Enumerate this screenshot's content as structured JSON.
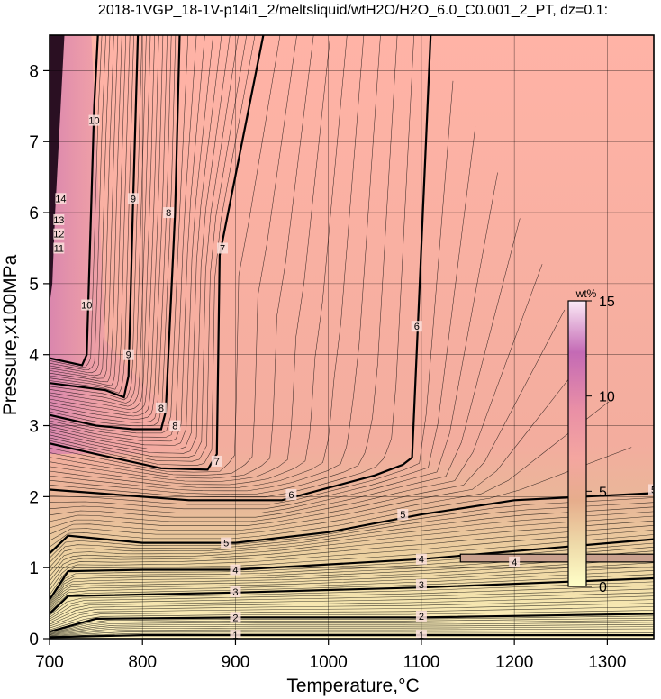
{
  "chart_data": {
    "type": "heatmap",
    "title": "2018-1VGP_18-1V-p14i1_2/meltsliquid/wtH2O/H2O_6.0_C0.001_2_PT, dz=0.1:",
    "xlabel": "Temperature,°C",
    "ylabel": "Pressure,x100MPa",
    "xlim": [
      700,
      1350
    ],
    "ylim": [
      0,
      8.5
    ],
    "x_ticks": [
      700,
      800,
      900,
      1000,
      1100,
      1200,
      1300
    ],
    "y_ticks": [
      0,
      1,
      2,
      3,
      4,
      5,
      6,
      7,
      8
    ],
    "grid": true,
    "colorbar": {
      "unit": "wt%",
      "range": [
        0,
        15
      ],
      "ticks": [
        0,
        5,
        10,
        15
      ],
      "colors": [
        "#ffffc8",
        "#eed9a8",
        "#e6ad8c",
        "#f4a6a0",
        "#e98fa6",
        "#c46ab5",
        "#fbeaf6"
      ]
    },
    "contours": [
      {
        "level": 1,
        "points": [
          [
            700,
            0.02
          ],
          [
            800,
            0.05
          ],
          [
            1000,
            0.05
          ],
          [
            1350,
            0.05
          ]
        ]
      },
      {
        "level": 2,
        "points": [
          [
            700,
            0.1
          ],
          [
            750,
            0.28
          ],
          [
            900,
            0.3
          ],
          [
            1100,
            0.3
          ],
          [
            1350,
            0.35
          ]
        ]
      },
      {
        "level": 3,
        "points": [
          [
            700,
            0.35
          ],
          [
            720,
            0.6
          ],
          [
            900,
            0.65
          ],
          [
            1100,
            0.72
          ],
          [
            1350,
            0.85
          ]
        ]
      },
      {
        "level": 4,
        "points": [
          [
            700,
            0.55
          ],
          [
            720,
            0.95
          ],
          [
            800,
            0.97
          ],
          [
            900,
            0.97
          ],
          [
            1100,
            1.12
          ],
          [
            1350,
            1.4
          ]
        ]
      },
      {
        "level": 5,
        "points": [
          [
            700,
            1.2
          ],
          [
            720,
            1.45
          ],
          [
            800,
            1.35
          ],
          [
            900,
            1.35
          ],
          [
            1000,
            1.5
          ],
          [
            1100,
            1.75
          ],
          [
            1200,
            1.95
          ],
          [
            1350,
            2.05
          ]
        ]
      },
      {
        "level": 6,
        "points": [
          [
            700,
            2.1
          ],
          [
            750,
            2.05
          ],
          [
            850,
            1.95
          ],
          [
            950,
            1.95
          ],
          [
            1050,
            2.3
          ],
          [
            1080,
            2.45
          ],
          [
            1090,
            2.55
          ],
          [
            1110,
            8.5
          ]
        ]
      },
      {
        "level": 7,
        "points": [
          [
            700,
            2.75
          ],
          [
            750,
            2.6
          ],
          [
            820,
            2.4
          ],
          [
            870,
            2.38
          ],
          [
            880,
            2.6
          ],
          [
            883,
            5.4
          ],
          [
            930,
            8.5
          ]
        ]
      },
      {
        "level": 8,
        "points": [
          [
            700,
            3.15
          ],
          [
            750,
            3.0
          ],
          [
            790,
            2.95
          ],
          [
            820,
            2.95
          ],
          [
            825,
            3.2
          ],
          [
            835,
            6.0
          ],
          [
            840,
            8.5
          ]
        ]
      },
      {
        "level": 9,
        "points": [
          [
            700,
            3.6
          ],
          [
            760,
            3.5
          ],
          [
            780,
            3.4
          ],
          [
            785,
            3.7
          ],
          [
            790,
            6.2
          ],
          [
            795,
            8.5
          ]
        ]
      },
      {
        "level": 10,
        "points": [
          [
            700,
            3.95
          ],
          [
            735,
            3.85
          ],
          [
            740,
            4.0
          ],
          [
            748,
            7.5
          ],
          [
            752,
            8.5
          ]
        ]
      }
    ],
    "contour_labels": [
      "1",
      "1",
      "2",
      "2",
      "3",
      "3",
      "4",
      "4",
      "4",
      "5",
      "5",
      "6",
      "6",
      "7",
      "7",
      "8",
      "8",
      "8",
      "9",
      "9",
      "10",
      "10",
      "11",
      "12",
      "13",
      "14",
      "5"
    ]
  }
}
